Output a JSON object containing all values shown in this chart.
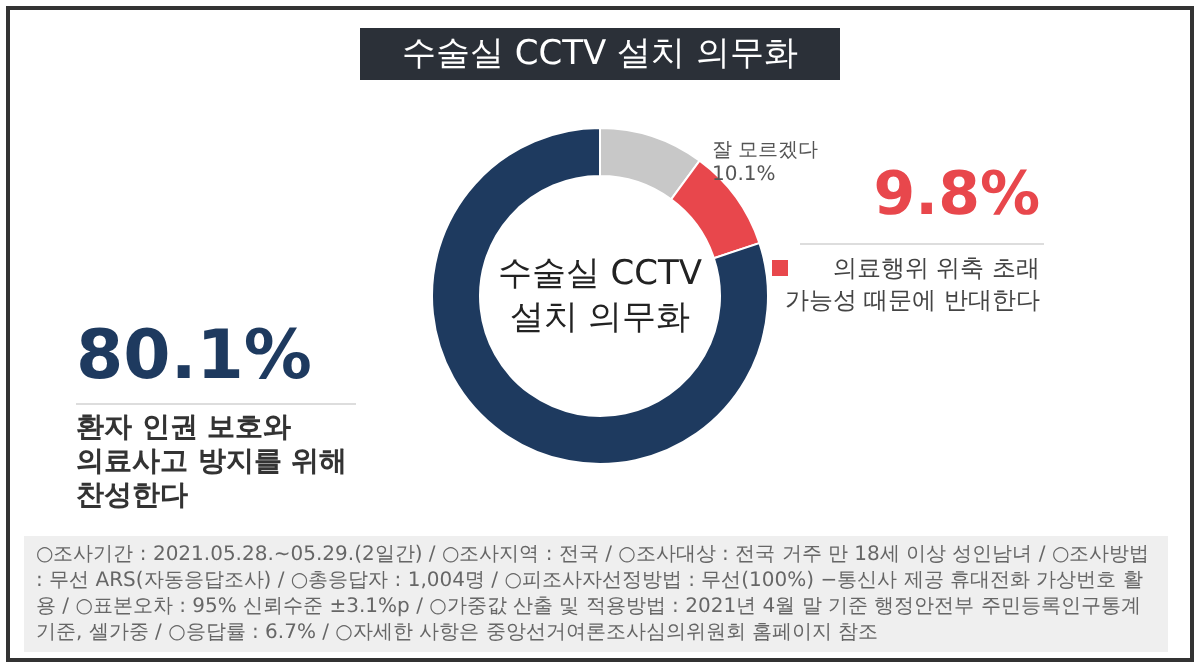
{
  "chart_data": {
    "type": "donut",
    "title": "수술실 CCTV 설치 의무화",
    "categories": [
      "잘 모르겠다",
      "의료행위 위축 초래\n가능성 때문에 반대한다",
      "환자 인권 보호와\n의료사고 방지를 위해\n찬성한다"
    ],
    "values": [
      10.1,
      9.8,
      80.1
    ],
    "colors": [
      "#c8c8c8",
      "#e8474c",
      "#1e3a5f"
    ],
    "value_labels": [
      "10.1%",
      "9.8%",
      "80.1%"
    ],
    "annotations": [
      "수술실 CCTV\n설치 의무화",
      "○조사기간 : 2021.05.28.~05.29.(2일간) / ○조사지역 : 전국 / ○조사대상 : 전국 거주 만 18세 이상 성인남녀 / ○조사방법 : 무선 ARS(자동응답조사) / ○총응답자 : 1,004명 / ○피조사자선정방법 : 무선(100%) −통신사 제공 휴대전화 가상번호 활용 / ○표본오차 : 95% 신뢰수준 ±3.1%p / ○가중값 산출 및 적용방법 : 2021년 4월 말 기준 행정안전부 주민등록인구통계 기준, 셀가중 / ○응답률 : 6.7% / ○자세한 사항은 중앙선거여론조사심의위원회 홈페이지 참조"
    ]
  }
}
